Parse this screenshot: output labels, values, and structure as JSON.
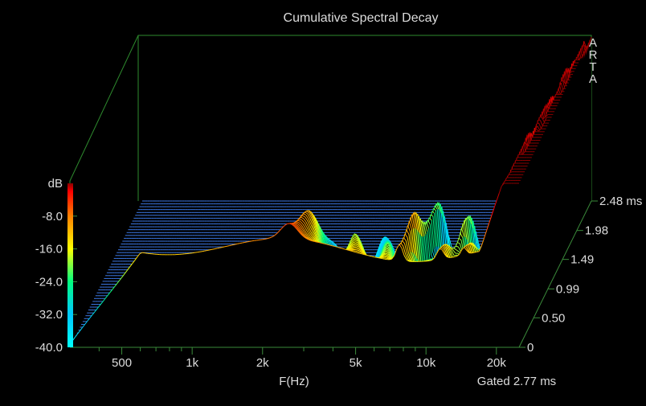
{
  "chart_data": {
    "type": "waterfall",
    "title": "Cumulative Spectral Decay",
    "xlabel": "F(Hz)",
    "zlabel": "dB",
    "x_scale": "log",
    "x_ticks": [
      "500",
      "1k",
      "2k",
      "5k",
      "10k",
      "20k"
    ],
    "x_tick_values": [
      500,
      1000,
      2000,
      5000,
      10000,
      20000
    ],
    "xlim": [
      300,
      25000
    ],
    "z_ticks": [
      "-8.0",
      "-16.0",
      "-24.0",
      "-32.0",
      "-40.0"
    ],
    "z_tick_values": [
      -8,
      -16,
      -24,
      -32,
      -40
    ],
    "zlim": [
      -40,
      0
    ],
    "t_ticks": [
      "0",
      "0.50",
      "0.99",
      "1.49",
      "1.98",
      "2.48 ms"
    ],
    "t_tick_values": [
      0,
      0.5,
      0.99,
      1.49,
      1.98,
      2.48
    ],
    "tlim": [
      0,
      2.48
    ],
    "gated_label": "Gated 2.77 ms",
    "brand": [
      "A",
      "R",
      "T",
      "A"
    ],
    "colormap": [
      "#00ffff",
      "#00c8ff",
      "#00ff80",
      "#ffff00",
      "#ff8000",
      "#ff0000",
      "#8b0000"
    ],
    "floor_color": "#3c78e6",
    "slice_count": 52
  }
}
